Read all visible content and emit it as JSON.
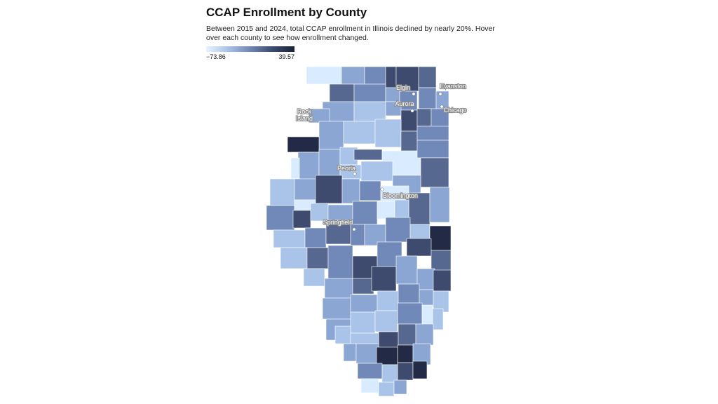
{
  "title": "CCAP Enrollment by County",
  "subtitle": "Between 2015 and 2024, total CCAP enrollment in Illinois declined by nearly 20%. Hover over each county to see how enrollment changed.",
  "legend": {
    "min_label": "−73.86",
    "max_label": "39.57",
    "colors": [
      "#e6f3ff",
      "#a7c2e6",
      "#6f87b4",
      "#3b4b6f",
      "#1a2138"
    ]
  },
  "cities": [
    {
      "name": "Elgin",
      "lines": [
        "Elgin"
      ]
    },
    {
      "name": "Evanston",
      "lines": [
        "Evanston"
      ]
    },
    {
      "name": "Aurora",
      "lines": [
        "Aurora"
      ]
    },
    {
      "name": "Chicago",
      "lines": [
        "Chicago"
      ]
    },
    {
      "name": "Rock Island",
      "lines": [
        "Rock",
        "Island"
      ]
    },
    {
      "name": "Peoria",
      "lines": [
        "Peoria"
      ]
    },
    {
      "name": "Bloomington",
      "lines": [
        "Bloomington"
      ]
    },
    {
      "name": "Springfield",
      "lines": [
        "Springfield"
      ]
    }
  ],
  "map_colors": {
    "c1": "#d9ecff",
    "c2": "#a9c4e8",
    "c3": "#8ca6d3",
    "c4": "#7189b8",
    "c5": "#56688f",
    "c6": "#3e4b6e",
    "c7": "#222a45"
  }
}
